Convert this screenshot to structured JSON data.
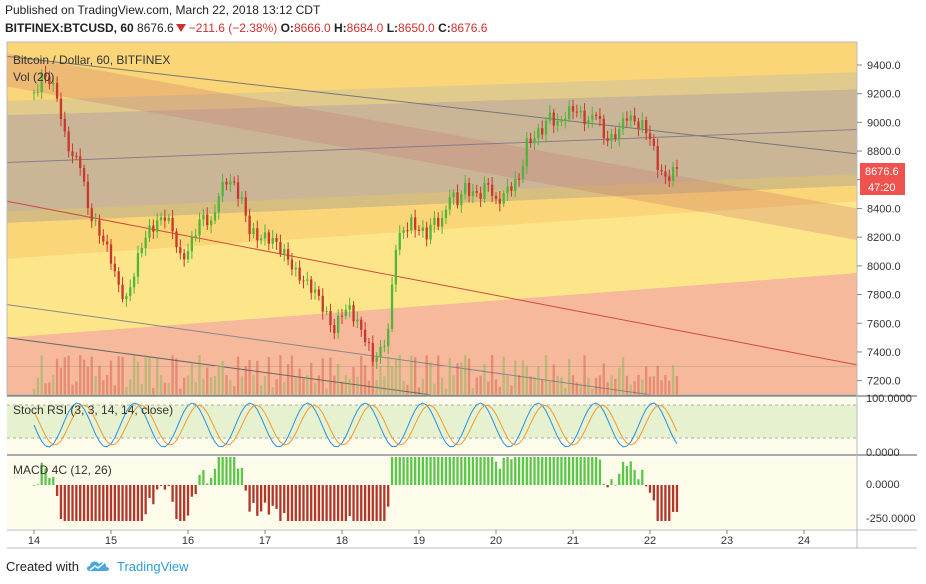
{
  "header": {
    "published": "Published on TradingView.com, March 22, 2018 13:12 CDT",
    "symbol": "BITFINEX:BTCUSD, 60",
    "last": "8676.6",
    "change": "−211.6 (−2.38%)",
    "ohlc": {
      "o_label": "O:",
      "o": "8666.0",
      "h_label": "H:",
      "h": "8684.0",
      "l_label": "L:",
      "l": "8650.0",
      "c_label": "C:",
      "c": "8676.6"
    }
  },
  "legend": {
    "pair": "Bitcoin / Dollar, 60, BITFINEX",
    "vol": "Vol (20)"
  },
  "price_badge": {
    "value": "8676.6",
    "time": "47:20"
  },
  "stoch": {
    "label": "Stoch RSI (3, 3, 14, 14, close)",
    "ticks": [
      "100.0000",
      "0.0000"
    ]
  },
  "macd": {
    "label": "MACD 4C (12, 26)",
    "ticks": [
      "0.0000",
      "-250.0000"
    ]
  },
  "footer": {
    "created": "Created with",
    "brand": "TradingView"
  },
  "colors": {
    "up": "#53b43c",
    "down": "#c8382d",
    "bg_yellow": "#fde68a",
    "channel_grey": "#a8a8a8",
    "stoch_fill": "#e6f1cf",
    "macd_up": "#5ac74a",
    "macd_down": "#b3362c"
  },
  "chart_data": {
    "type": "candlestick",
    "y_axis_ticks": [
      7200,
      7400,
      7600,
      7800,
      8000,
      8200,
      8400,
      8600,
      8800,
      9000,
      9200,
      9400
    ],
    "y_tick_labels": [
      "7200.0",
      "7400.0",
      "7600.0",
      "7800.0",
      "8000.0",
      "8200.0",
      "8400.0",
      "8600.0",
      "8800.0",
      "9000.0",
      "9200.0",
      "9400.0"
    ],
    "x_tick_labels": [
      "14",
      "15",
      "16",
      "17",
      "18",
      "19",
      "20",
      "21",
      "22",
      "23",
      "24"
    ],
    "ylim": [
      7100,
      9560
    ],
    "close_path": [
      [
        14.0,
        9180
      ],
      [
        14.1,
        9320
      ],
      [
        14.2,
        9300
      ],
      [
        14.3,
        9180
      ],
      [
        14.4,
        8900
      ],
      [
        14.5,
        8760
      ],
      [
        14.6,
        8720
      ],
      [
        14.7,
        8400
      ],
      [
        14.8,
        8280
      ],
      [
        14.9,
        8180
      ],
      [
        15.0,
        8050
      ],
      [
        15.1,
        7850
      ],
      [
        15.2,
        7760
      ],
      [
        15.3,
        7950
      ],
      [
        15.4,
        8150
      ],
      [
        15.5,
        8250
      ],
      [
        15.6,
        8300
      ],
      [
        15.7,
        8350
      ],
      [
        15.8,
        8250
      ],
      [
        15.9,
        8050
      ],
      [
        16.0,
        8100
      ],
      [
        16.1,
        8250
      ],
      [
        16.2,
        8350
      ],
      [
        16.3,
        8280
      ],
      [
        16.4,
        8500
      ],
      [
        16.5,
        8600
      ],
      [
        16.6,
        8560
      ],
      [
        16.7,
        8450
      ],
      [
        16.8,
        8250
      ],
      [
        16.9,
        8200
      ],
      [
        17.0,
        8200
      ],
      [
        17.1,
        8180
      ],
      [
        17.2,
        8120
      ],
      [
        17.3,
        8050
      ],
      [
        17.4,
        7950
      ],
      [
        17.5,
        7900
      ],
      [
        17.6,
        7850
      ],
      [
        17.7,
        7780
      ],
      [
        17.8,
        7650
      ],
      [
        17.9,
        7550
      ],
      [
        18.0,
        7680
      ],
      [
        18.1,
        7700
      ],
      [
        18.2,
        7600
      ],
      [
        18.3,
        7500
      ],
      [
        18.4,
        7350
      ],
      [
        18.5,
        7400
      ],
      [
        18.6,
        7550
      ],
      [
        18.7,
        8150
      ],
      [
        18.8,
        8250
      ],
      [
        18.9,
        8300
      ],
      [
        19.0,
        8250
      ],
      [
        19.1,
        8220
      ],
      [
        19.2,
        8320
      ],
      [
        19.3,
        8300
      ],
      [
        19.4,
        8500
      ],
      [
        19.5,
        8450
      ],
      [
        19.6,
        8550
      ],
      [
        19.7,
        8500
      ],
      [
        19.8,
        8500
      ],
      [
        19.9,
        8580
      ],
      [
        20.0,
        8430
      ],
      [
        20.1,
        8500
      ],
      [
        20.2,
        8560
      ],
      [
        20.3,
        8600
      ],
      [
        20.4,
        8850
      ],
      [
        20.5,
        8900
      ],
      [
        20.6,
        8950
      ],
      [
        20.7,
        9050
      ],
      [
        20.8,
        8980
      ],
      [
        20.9,
        9050
      ],
      [
        21.0,
        9100
      ],
      [
        21.1,
        9050
      ],
      [
        21.2,
        9000
      ],
      [
        21.3,
        9080
      ],
      [
        21.4,
        8900
      ],
      [
        21.5,
        8880
      ],
      [
        21.6,
        8950
      ],
      [
        21.7,
        9050
      ],
      [
        21.8,
        9000
      ],
      [
        21.9,
        8980
      ],
      [
        22.0,
        8900
      ],
      [
        22.1,
        8700
      ],
      [
        22.2,
        8600
      ],
      [
        22.3,
        8660
      ],
      [
        22.35,
        8676.6
      ]
    ]
  }
}
